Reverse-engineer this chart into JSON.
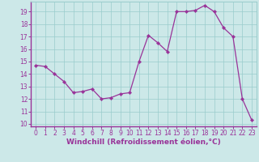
{
  "x": [
    0,
    1,
    2,
    3,
    4,
    5,
    6,
    7,
    8,
    9,
    10,
    11,
    12,
    13,
    14,
    15,
    16,
    17,
    18,
    19,
    20,
    21,
    22,
    23
  ],
  "y": [
    14.7,
    14.6,
    14.0,
    13.4,
    12.5,
    12.6,
    12.8,
    12.0,
    12.1,
    12.4,
    12.5,
    15.0,
    17.1,
    16.5,
    15.8,
    19.0,
    19.0,
    19.1,
    19.5,
    19.0,
    17.7,
    17.0,
    12.0,
    10.3
  ],
  "xlabel": "Windchill (Refroidissement éolien,°C)",
  "ylim_min": 9.8,
  "ylim_max": 19.8,
  "yticks": [
    10,
    11,
    12,
    13,
    14,
    15,
    16,
    17,
    18,
    19
  ],
  "line_color": "#993399",
  "marker_color": "#993399",
  "bg_color": "#cce8e8",
  "grid_color": "#99cccc",
  "axis_color": "#993399",
  "tick_label_color": "#993399",
  "xlabel_color": "#993399",
  "tick_fontsize": 5.5,
  "xlabel_fontsize": 6.5
}
